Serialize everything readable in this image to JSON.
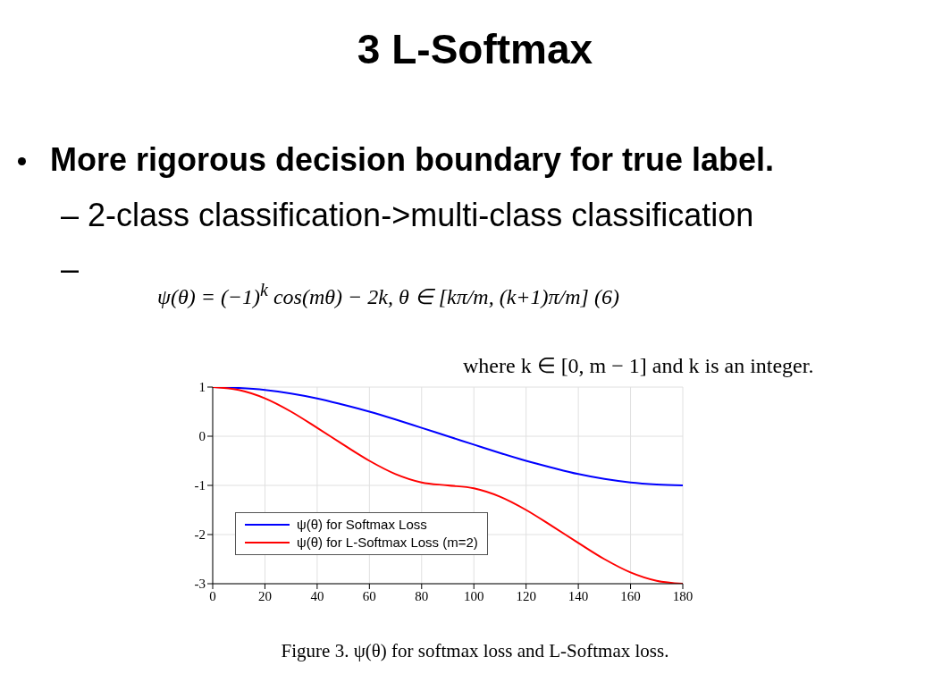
{
  "chart_data": {
    "type": "line",
    "title": "3 L-Softmax",
    "annotations": [
      "More rigorous decision boundary for true label.",
      "– 2-class classification->multi-class classification",
      "–",
      "ψ(θ) = (−1)$^{k}$ cos(mθ) − 2k,   θ ∈ [kπ/m, (k+1)π/m]      (6)",
      "where k ∈ [0, m − 1] and k is an integer.",
      "Figure 3. ψ(θ) for softmax loss and L-Softmax loss."
    ],
    "x": [
      0,
      10,
      20,
      30,
      40,
      50,
      60,
      70,
      80,
      90,
      100,
      110,
      120,
      130,
      140,
      150,
      160,
      170,
      180
    ],
    "series": [
      {
        "name": "ψ(θ) for Softmax Loss",
        "color": "#0000ff",
        "values": [
          1,
          0.98,
          0.94,
          0.87,
          0.77,
          0.64,
          0.5,
          0.34,
          0.17,
          0,
          -0.17,
          -0.34,
          -0.5,
          -0.64,
          -0.77,
          -0.87,
          -0.94,
          -0.98,
          -1
        ]
      },
      {
        "name": "ψ(θ) for L-Softmax Loss (m=2)",
        "color": "#ff0000",
        "values": [
          1,
          0.94,
          0.77,
          0.5,
          0.17,
          -0.17,
          -0.5,
          -0.77,
          -0.94,
          -1,
          -1.06,
          -1.23,
          -1.5,
          -1.83,
          -2.17,
          -2.5,
          -2.77,
          -2.94,
          -3
        ]
      }
    ],
    "xlim": [
      0,
      180
    ],
    "xticks": [
      0,
      20,
      40,
      60,
      80,
      100,
      120,
      140,
      160,
      180
    ],
    "ylim": [
      -3,
      1
    ],
    "yticks": [
      -3,
      -2,
      -1,
      0,
      1
    ],
    "grid": true,
    "legend": "bottom left",
    "marker": "none",
    "line_style": "solid"
  }
}
